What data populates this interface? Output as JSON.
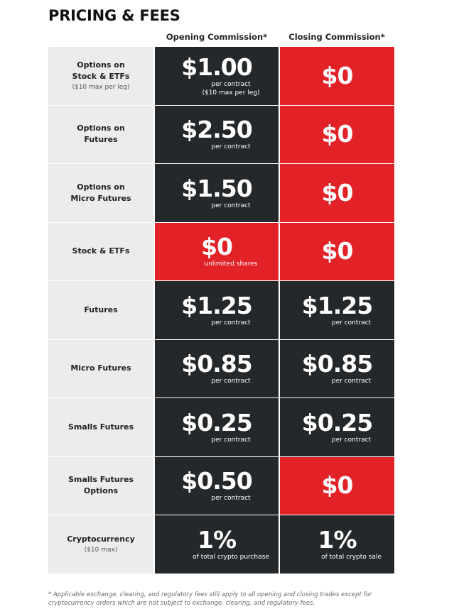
{
  "page": {
    "title": "PRICING & FEES",
    "footnote": "* Applicable exchange, clearing, and regulatory fees still apply to all opening and closing trades except for cryptocurrency orders which are not subject to exchange, clearing, and regulatory fees."
  },
  "columns": {
    "opening": "Opening Commission*",
    "closing": "Closing Commission*"
  },
  "colors": {
    "dark_cell": "#25282a",
    "red_cell": "#e22227",
    "label_cell": "#ececec"
  },
  "rows": [
    {
      "label": "Options on\nStock & ETFs",
      "label_sub": "($10 max per leg)",
      "opening": {
        "amount": "$1.00",
        "note1": "per contract",
        "note2": "($10 max per leg)",
        "style": "dark"
      },
      "closing": {
        "amount": "$0",
        "note1": "",
        "note2": "",
        "style": "red"
      }
    },
    {
      "label": "Options on\nFutures",
      "label_sub": "",
      "opening": {
        "amount": "$2.50",
        "note1": "per contract",
        "note2": "",
        "style": "dark"
      },
      "closing": {
        "amount": "$0",
        "note1": "",
        "note2": "",
        "style": "red"
      }
    },
    {
      "label": "Options on\nMicro Futures",
      "label_sub": "",
      "opening": {
        "amount": "$1.50",
        "note1": "per contract",
        "note2": "",
        "style": "dark"
      },
      "closing": {
        "amount": "$0",
        "note1": "",
        "note2": "",
        "style": "red"
      }
    },
    {
      "label": "Stock & ETFs",
      "label_sub": "",
      "opening": {
        "amount": "$0",
        "note1": "unlimited shares",
        "note2": "",
        "style": "red"
      },
      "closing": {
        "amount": "$0",
        "note1": "",
        "note2": "",
        "style": "red"
      }
    },
    {
      "label": "Futures",
      "label_sub": "",
      "opening": {
        "amount": "$1.25",
        "note1": "per contract",
        "note2": "",
        "style": "dark"
      },
      "closing": {
        "amount": "$1.25",
        "note1": "per contract",
        "note2": "",
        "style": "dark"
      }
    },
    {
      "label": "Micro Futures",
      "label_sub": "",
      "opening": {
        "amount": "$0.85",
        "note1": "per contract",
        "note2": "",
        "style": "dark"
      },
      "closing": {
        "amount": "$0.85",
        "note1": "per contract",
        "note2": "",
        "style": "dark"
      }
    },
    {
      "label": "Smalls Futures",
      "label_sub": "",
      "opening": {
        "amount": "$0.25",
        "note1": "per contract",
        "note2": "",
        "style": "dark"
      },
      "closing": {
        "amount": "$0.25",
        "note1": "per contract",
        "note2": "",
        "style": "dark"
      }
    },
    {
      "label": "Smalls Futures\nOptions",
      "label_sub": "",
      "opening": {
        "amount": "$0.50",
        "note1": "per contract",
        "note2": "",
        "style": "dark"
      },
      "closing": {
        "amount": "$0",
        "note1": "",
        "note2": "",
        "style": "red"
      }
    },
    {
      "label": "Cryptocurrency",
      "label_sub": "($10 max)",
      "opening": {
        "amount": "1%",
        "note1": "of total crypto purchase",
        "note2": "",
        "style": "dark"
      },
      "closing": {
        "amount": "1%",
        "note1": "of total crypto sale",
        "note2": "",
        "style": "dark"
      }
    }
  ]
}
